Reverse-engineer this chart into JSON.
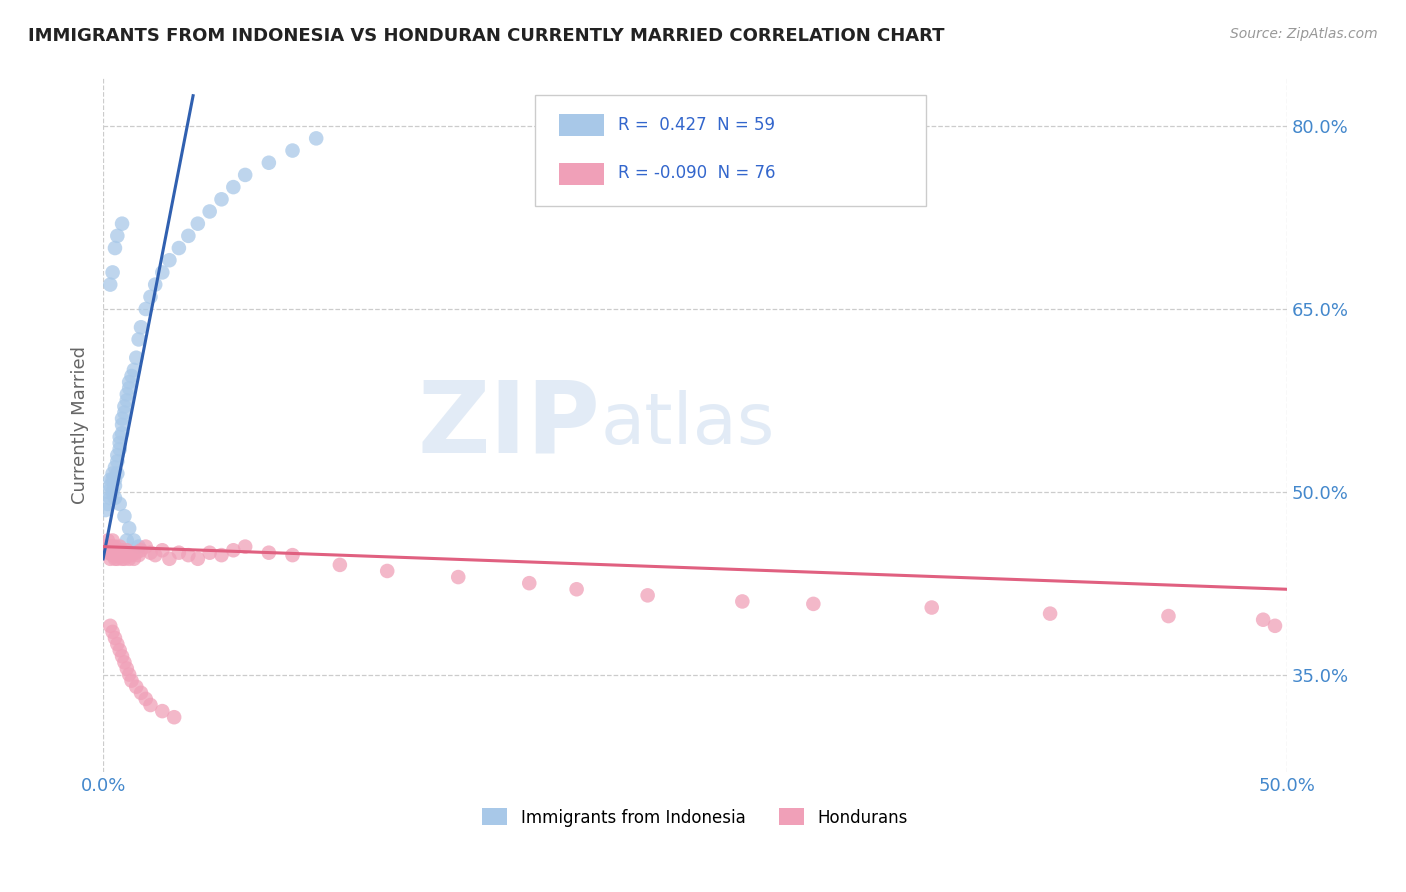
{
  "title": "IMMIGRANTS FROM INDONESIA VS HONDURAN CURRENTLY MARRIED CORRELATION CHART",
  "source_text": "Source: ZipAtlas.com",
  "ylabel": "Currently Married",
  "xlim": [
    0.0,
    0.5
  ],
  "ylim": [
    0.27,
    0.84
  ],
  "xtick_labels": [
    "0.0%",
    "50.0%"
  ],
  "xtick_positions": [
    0.0,
    0.5
  ],
  "ytick_labels": [
    "35.0%",
    "50.0%",
    "65.0%",
    "80.0%"
  ],
  "ytick_positions": [
    0.35,
    0.5,
    0.65,
    0.8
  ],
  "legend_R1": " 0.427",
  "legend_N1": "59",
  "legend_R2": "-0.090",
  "legend_N2": "76",
  "legend_label1": "Immigrants from Indonesia",
  "legend_label2": "Hondurans",
  "color_blue": "#a8c8e8",
  "color_pink": "#f0a0b8",
  "trendline_blue": "#3060b0",
  "trendline_pink": "#e06080",
  "watermark_zip": "ZIP",
  "watermark_atlas": "atlas",
  "blue_x": [
    0.001,
    0.002,
    0.002,
    0.003,
    0.003,
    0.003,
    0.004,
    0.004,
    0.004,
    0.005,
    0.005,
    0.005,
    0.005,
    0.006,
    0.006,
    0.006,
    0.007,
    0.007,
    0.007,
    0.008,
    0.008,
    0.008,
    0.009,
    0.009,
    0.01,
    0.01,
    0.011,
    0.011,
    0.012,
    0.013,
    0.014,
    0.015,
    0.016,
    0.018,
    0.02,
    0.022,
    0.025,
    0.028,
    0.032,
    0.036,
    0.04,
    0.045,
    0.05,
    0.055,
    0.06,
    0.07,
    0.08,
    0.09,
    0.01,
    0.008,
    0.006,
    0.005,
    0.004,
    0.003,
    0.007,
    0.009,
    0.011,
    0.013,
    0.015
  ],
  "blue_y": [
    0.485,
    0.49,
    0.5,
    0.51,
    0.495,
    0.505,
    0.515,
    0.51,
    0.5,
    0.52,
    0.51,
    0.505,
    0.495,
    0.53,
    0.525,
    0.515,
    0.54,
    0.535,
    0.545,
    0.555,
    0.548,
    0.56,
    0.565,
    0.57,
    0.575,
    0.58,
    0.59,
    0.585,
    0.595,
    0.6,
    0.61,
    0.625,
    0.635,
    0.65,
    0.66,
    0.67,
    0.68,
    0.69,
    0.7,
    0.71,
    0.72,
    0.73,
    0.74,
    0.75,
    0.76,
    0.77,
    0.78,
    0.79,
    0.46,
    0.72,
    0.71,
    0.7,
    0.68,
    0.67,
    0.49,
    0.48,
    0.47,
    0.46,
    0.455
  ],
  "pink_x": [
    0.001,
    0.002,
    0.002,
    0.003,
    0.003,
    0.003,
    0.004,
    0.004,
    0.004,
    0.005,
    0.005,
    0.005,
    0.005,
    0.006,
    0.006,
    0.006,
    0.007,
    0.007,
    0.007,
    0.008,
    0.008,
    0.008,
    0.009,
    0.009,
    0.01,
    0.01,
    0.011,
    0.011,
    0.012,
    0.013,
    0.014,
    0.015,
    0.016,
    0.018,
    0.02,
    0.022,
    0.025,
    0.028,
    0.032,
    0.036,
    0.04,
    0.045,
    0.05,
    0.055,
    0.06,
    0.07,
    0.08,
    0.1,
    0.12,
    0.15,
    0.18,
    0.2,
    0.23,
    0.27,
    0.3,
    0.35,
    0.4,
    0.45,
    0.49,
    0.495,
    0.003,
    0.004,
    0.005,
    0.006,
    0.007,
    0.008,
    0.009,
    0.01,
    0.011,
    0.012,
    0.014,
    0.016,
    0.018,
    0.02,
    0.025,
    0.03
  ],
  "pink_y": [
    0.455,
    0.46,
    0.45,
    0.455,
    0.445,
    0.45,
    0.455,
    0.448,
    0.46,
    0.45,
    0.455,
    0.445,
    0.45,
    0.448,
    0.452,
    0.445,
    0.45,
    0.455,
    0.448,
    0.452,
    0.445,
    0.448,
    0.45,
    0.445,
    0.448,
    0.452,
    0.45,
    0.445,
    0.448,
    0.445,
    0.45,
    0.448,
    0.452,
    0.455,
    0.45,
    0.448,
    0.452,
    0.445,
    0.45,
    0.448,
    0.445,
    0.45,
    0.448,
    0.452,
    0.455,
    0.45,
    0.448,
    0.44,
    0.435,
    0.43,
    0.425,
    0.42,
    0.415,
    0.41,
    0.408,
    0.405,
    0.4,
    0.398,
    0.395,
    0.39,
    0.39,
    0.385,
    0.38,
    0.375,
    0.37,
    0.365,
    0.36,
    0.355,
    0.35,
    0.345,
    0.34,
    0.335,
    0.33,
    0.325,
    0.32,
    0.315
  ]
}
